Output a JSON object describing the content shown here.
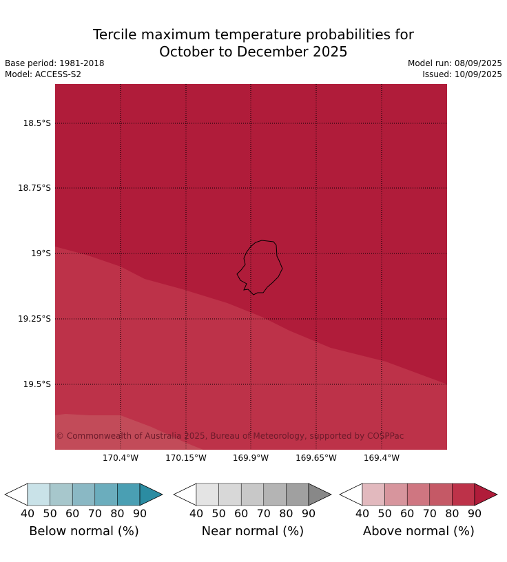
{
  "title_line1": "Tercile maximum temperature probabilities for",
  "title_line2": "October to December 2025",
  "base_period": "Base period: 1981-2018",
  "model": "Model: ACCESS-S2",
  "model_run": "Model run: 08/09/2025",
  "issued": "Issued: 10/09/2025",
  "map": {
    "lat_labels": [
      "18.5°S",
      "18.75°S",
      "19°S",
      "19.25°S",
      "19.5°S"
    ],
    "lon_labels": [
      "170.4°W",
      "170.15°W",
      "169.9°W",
      "169.65°W",
      "169.4°W"
    ],
    "copyright": "© Commonwealth of Australia 2025, Bureau of Meteorology, supported by COSPPac",
    "zone_colors": {
      "above_90": "#b01c3a",
      "above_80": "#bd3249",
      "above_70": "#c24b59"
    }
  },
  "legends": [
    {
      "title": "Below normal (%)",
      "ticks": [
        "40",
        "50",
        "60",
        "70",
        "80",
        "90"
      ],
      "colors": [
        "#c9e2e8",
        "#a7c7cc",
        "#8ab8c4",
        "#6badbd",
        "#4a9fb3",
        "#2b8ca2"
      ]
    },
    {
      "title": "Near normal (%)",
      "ticks": [
        "40",
        "50",
        "60",
        "70",
        "80",
        "90"
      ],
      "colors": [
        "#e4e4e4",
        "#d8d8d8",
        "#c8c8c8",
        "#b4b4b4",
        "#a0a0a0",
        "#888888"
      ]
    },
    {
      "title": "Above normal (%)",
      "ticks": [
        "40",
        "50",
        "60",
        "70",
        "80",
        "90"
      ],
      "colors": [
        "#e2b9be",
        "#d7959d",
        "#cf7681",
        "#c55966",
        "#bd3249",
        "#b01c3a"
      ]
    }
  ]
}
